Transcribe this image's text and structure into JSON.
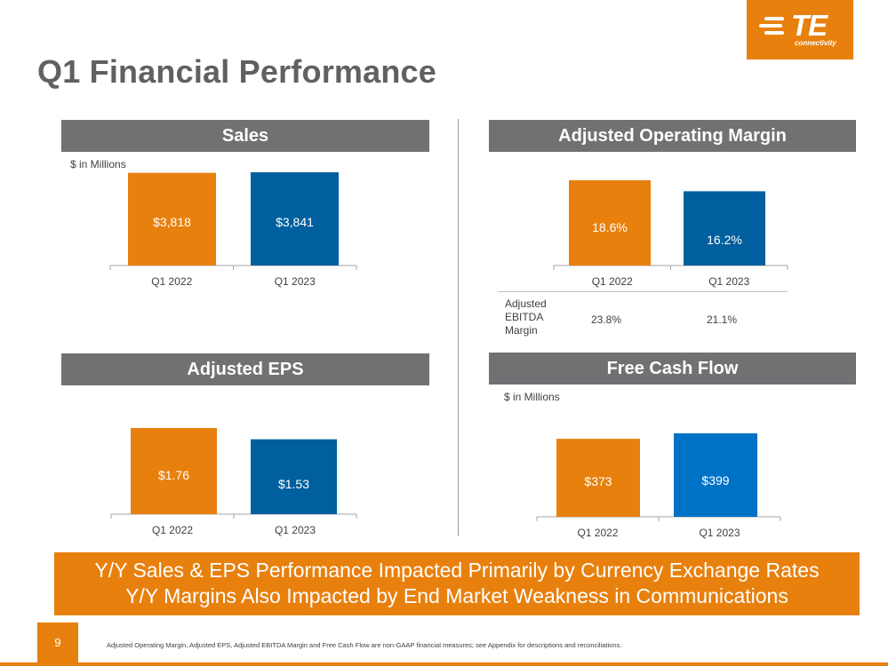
{
  "page": {
    "title": "Q1 Financial Performance",
    "page_number": "9",
    "footnote": "Adjusted Operating Margin, Adjusted EPS, Adjusted EBITDA Margin and Free Cash Flow are non-GAAP financial measures; see Appendix for descriptions and reconciliations.",
    "banner_line1": "Y/Y Sales & EPS Performance Impacted Primarily by Currency Exchange Rates",
    "banner_line2": "Y/Y Margins Also Impacted by End Market Weakness in Communications"
  },
  "logo": {
    "name": "TE",
    "subtitle": "connectivity"
  },
  "colors": {
    "orange": "#e8800d",
    "blue_dark": "#005f9e",
    "blue": "#0072c6",
    "header_gray": "#707173"
  },
  "ebitda": {
    "label": "Adjusted EBITDA Margin",
    "values": [
      "23.8%",
      "21.1%"
    ]
  },
  "chart_data": [
    {
      "id": "sales",
      "type": "bar",
      "title": "Sales",
      "unit_label": "$ in Millions",
      "categories": [
        "Q1 2022",
        "Q1 2023"
      ],
      "values": [
        3818,
        3841
      ],
      "labels": [
        "$3,818",
        "$3,841"
      ],
      "ylim": [
        0,
        3841
      ]
    },
    {
      "id": "margin",
      "type": "bar",
      "title": "Adjusted Operating Margin",
      "unit_label": "",
      "categories": [
        "Q1 2022",
        "Q1 2023"
      ],
      "values": [
        18.6,
        16.2
      ],
      "labels": [
        "18.6%",
        "16.2%"
      ],
      "ylim": [
        0,
        18.6
      ]
    },
    {
      "id": "eps",
      "type": "bar",
      "title": "Adjusted EPS",
      "unit_label": "",
      "categories": [
        "Q1 2022",
        "Q1 2023"
      ],
      "values": [
        1.76,
        1.53
      ],
      "labels": [
        "$1.76",
        "$1.53"
      ],
      "ylim": [
        0,
        1.76
      ]
    },
    {
      "id": "fcf",
      "type": "bar",
      "title": "Free Cash Flow",
      "unit_label": "$ in Millions",
      "categories": [
        "Q1 2022",
        "Q1 2023"
      ],
      "values": [
        373,
        399
      ],
      "labels": [
        "$373",
        "$399"
      ],
      "ylim": [
        0,
        399
      ]
    }
  ]
}
